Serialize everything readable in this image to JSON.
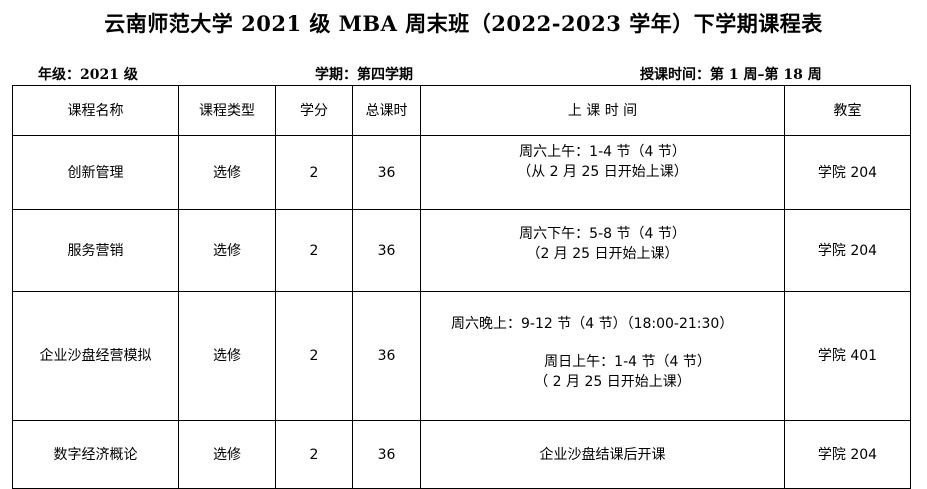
{
  "title": "云南师范大学 2021 级 MBA 周末班（2022-2023 学年）下学期课程表",
  "meta": {
    "grade": "年级：2021 级",
    "semester": "学期：第四学期",
    "period": "授课时间：第 1 周–第 18 周"
  },
  "headers": [
    "课程名称",
    "课程类型",
    "学分",
    "总课时",
    "上 课 时 间",
    "教室"
  ],
  "rows": [
    {
      "name": "创新管理",
      "type": "选修",
      "credit": "2",
      "hours": "36",
      "time": [
        "周六上午：1-4 节（4 节）",
        "（从 2 月 25 日开始上课）"
      ],
      "room": "学院 204"
    },
    {
      "name": "服务营销",
      "type": "选修",
      "credit": "2",
      "hours": "36",
      "time": [
        "周六下午：5-8 节（4 节）",
        "（2 月 25 日开始上课）"
      ],
      "room": "学院 204"
    },
    {
      "name": "企业沙盘经营模拟",
      "type": "选修",
      "credit": "2",
      "hours": "36",
      "time": [
        "周六晚上：9-12 节（4 节）（18:00-21:30）",
        "周日上午：1-4 节（4 节）",
        "（ 2 月 25 日开始上课）"
      ],
      "room": "学院 401"
    },
    {
      "name": "数字经济概论",
      "type": "选修",
      "credit": "2",
      "hours": "36",
      "time": [
        "企业沙盘结课后开课"
      ],
      "room": "学院 204"
    }
  ]
}
